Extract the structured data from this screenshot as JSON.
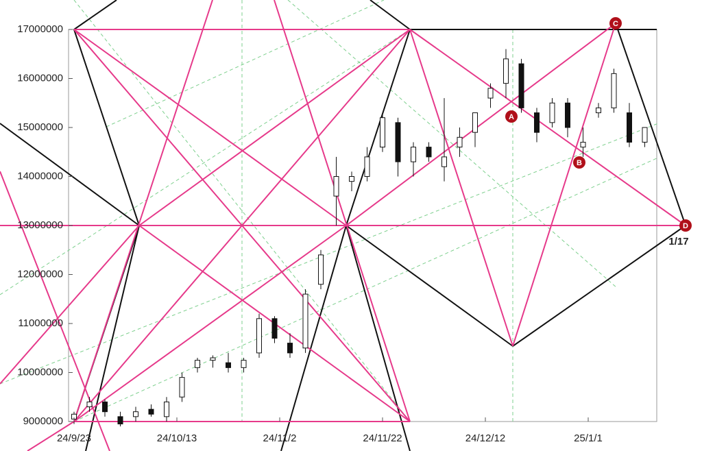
{
  "chart_data": {
    "type": "candlestick",
    "x": [
      "24/9/23",
      "24/9/26",
      "24/9/29",
      "24/10/2",
      "24/10/5",
      "24/10/8",
      "24/10/11",
      "24/10/14",
      "24/10/17",
      "24/10/20",
      "24/10/23",
      "24/10/26",
      "24/10/29",
      "24/11/1",
      "24/11/4",
      "24/11/7",
      "24/11/10",
      "24/11/13",
      "24/11/16",
      "24/11/19",
      "24/11/22",
      "24/11/25",
      "24/11/28",
      "24/12/1",
      "24/12/4",
      "24/12/7",
      "24/12/10",
      "24/12/13",
      "24/12/16",
      "24/12/19",
      "24/12/22",
      "24/12/25",
      "24/12/28",
      "24/12/31",
      "25/1/3",
      "25/1/6",
      "25/1/9",
      "25/1/12"
    ],
    "open": [
      9050000,
      9300000,
      9400000,
      9100000,
      9100000,
      9250000,
      9100000,
      9500000,
      10100000,
      10250000,
      10200000,
      10100000,
      10400000,
      11100000,
      10600000,
      10500000,
      11800000,
      13600000,
      13900000,
      14000000,
      14600000,
      15100000,
      14300000,
      14600000,
      14200000,
      14600000,
      14900000,
      15600000,
      15900000,
      16300000,
      15300000,
      15100000,
      15500000,
      14600000,
      15300000,
      15400000,
      15300000,
      14700000
    ],
    "high": [
      9200000,
      9500000,
      9450000,
      9200000,
      9300000,
      9350000,
      9500000,
      10000000,
      10300000,
      10350000,
      10400000,
      10300000,
      11200000,
      11150000,
      10800000,
      11700000,
      12500000,
      14400000,
      14100000,
      14600000,
      15300000,
      15200000,
      14700000,
      14700000,
      15600000,
      15000000,
      15300000,
      15900000,
      16600000,
      16400000,
      15400000,
      15600000,
      15600000,
      15000000,
      15500000,
      16200000,
      15500000,
      15000000
    ],
    "low": [
      8950000,
      9200000,
      9100000,
      8900000,
      9000000,
      9100000,
      9000000,
      9400000,
      10000000,
      10100000,
      10000000,
      10000000,
      10300000,
      10600000,
      10300000,
      10400000,
      11700000,
      13000000,
      13700000,
      13900000,
      14500000,
      14000000,
      14000000,
      14300000,
      13900000,
      14400000,
      14600000,
      15400000,
      15600000,
      15300000,
      14700000,
      15000000,
      14800000,
      14400000,
      15200000,
      15300000,
      14600000,
      14600000
    ],
    "close": [
      9150000,
      9400000,
      9200000,
      8950000,
      9200000,
      9150000,
      9400000,
      9900000,
      10250000,
      10300000,
      10100000,
      10250000,
      11100000,
      10700000,
      10400000,
      11600000,
      12400000,
      14000000,
      14000000,
      14400000,
      15200000,
      14300000,
      14600000,
      14400000,
      14400000,
      14800000,
      15300000,
      15800000,
      16400000,
      15400000,
      14900000,
      15500000,
      15000000,
      14700000,
      15400000,
      16100000,
      14700000,
      15000000
    ],
    "xticks": [
      "24/9/23",
      "24/10/13",
      "24/11/2",
      "24/11/22",
      "24/12/12",
      "25/1/1"
    ],
    "ylim": [
      9000000,
      17000000
    ],
    "yticks": [
      9000000,
      10000000,
      11000000,
      12000000,
      13000000,
      14000000,
      15000000,
      16000000,
      17000000
    ],
    "annotations": [
      "A",
      "B",
      "C",
      "D",
      "1/17"
    ]
  }
}
